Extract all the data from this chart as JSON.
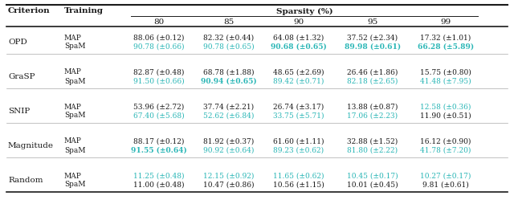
{
  "sparsity_header": "Sparsity (%)",
  "col_labels": [
    "80",
    "85",
    "90",
    "95",
    "99"
  ],
  "rows": [
    {
      "criterion": "OPD",
      "map_vals": [
        "88.06 (±0.12)",
        "82.32 (±0.44)",
        "64.08 (±1.32)",
        "37.52 (±2.34)",
        "17.32 (±1.01)"
      ],
      "spam_vals": [
        "90.78 (±0.66)",
        "90.78 (±0.65)",
        "90.68 (±0.65)",
        "89.98 (±0.61)",
        "66.28 (±5.89)"
      ],
      "map_teal": [
        false,
        false,
        false,
        false,
        false
      ],
      "spam_teal": [
        true,
        true,
        true,
        true,
        true
      ],
      "map_bold": [
        false,
        false,
        false,
        false,
        false
      ],
      "spam_bold": [
        false,
        false,
        true,
        true,
        true
      ]
    },
    {
      "criterion": "GraSP",
      "map_vals": [
        "82.87 (±0.48)",
        "68.78 (±1.88)",
        "48.65 (±2.69)",
        "26.46 (±1.86)",
        "15.75 (±0.80)"
      ],
      "spam_vals": [
        "91.50 (±0.66)",
        "90.94 (±0.65)",
        "89.42 (±0.71)",
        "82.18 (±2.65)",
        "41.48 (±7.95)"
      ],
      "map_teal": [
        false,
        false,
        false,
        false,
        false
      ],
      "spam_teal": [
        true,
        true,
        true,
        true,
        true
      ],
      "map_bold": [
        false,
        false,
        false,
        false,
        false
      ],
      "spam_bold": [
        false,
        true,
        false,
        false,
        false
      ]
    },
    {
      "criterion": "SNIP",
      "map_vals": [
        "53.96 (±2.72)",
        "37.74 (±2.21)",
        "26.74 (±3.17)",
        "13.88 (±0.87)",
        "12.58 (±0.36)"
      ],
      "spam_vals": [
        "67.40 (±5.68)",
        "52.62 (±6.84)",
        "33.75 (±5.71)",
        "17.06 (±2.23)",
        "11.90 (±0.51)"
      ],
      "map_teal": [
        false,
        false,
        false,
        false,
        true
      ],
      "spam_teal": [
        true,
        true,
        true,
        true,
        false
      ],
      "map_bold": [
        false,
        false,
        false,
        false,
        false
      ],
      "spam_bold": [
        false,
        false,
        false,
        false,
        false
      ]
    },
    {
      "criterion": "Magnitude",
      "map_vals": [
        "88.17 (±0.12)",
        "81.92 (±0.37)",
        "61.60 (±1.11)",
        "32.88 (±1.52)",
        "16.12 (±0.90)"
      ],
      "spam_vals": [
        "91.55 (±0.64)",
        "90.92 (±0.64)",
        "89.23 (±0.62)",
        "81.80 (±2.22)",
        "41.78 (±7.20)"
      ],
      "map_teal": [
        false,
        false,
        false,
        false,
        false
      ],
      "spam_teal": [
        true,
        true,
        true,
        true,
        true
      ],
      "map_bold": [
        false,
        false,
        false,
        false,
        false
      ],
      "spam_bold": [
        true,
        false,
        false,
        false,
        false
      ]
    },
    {
      "criterion": "Random",
      "map_vals": [
        "11.25 (±0.48)",
        "12.15 (±0.92)",
        "11.65 (±0.62)",
        "10.45 (±0.17)",
        "10.27 (±0.17)"
      ],
      "spam_vals": [
        "11.00 (±0.48)",
        "10.47 (±0.86)",
        "10.56 (±1.15)",
        "10.01 (±0.45)",
        "9.81 (±0.61)"
      ],
      "map_teal": [
        true,
        true,
        true,
        true,
        true
      ],
      "spam_teal": [
        false,
        false,
        false,
        false,
        false
      ],
      "map_bold": [
        false,
        false,
        false,
        false,
        false
      ],
      "spam_bold": [
        false,
        false,
        false,
        false,
        false
      ]
    }
  ],
  "teal_color": "#29b6b6",
  "black_color": "#1a1a1a",
  "bg_color": "#ffffff"
}
